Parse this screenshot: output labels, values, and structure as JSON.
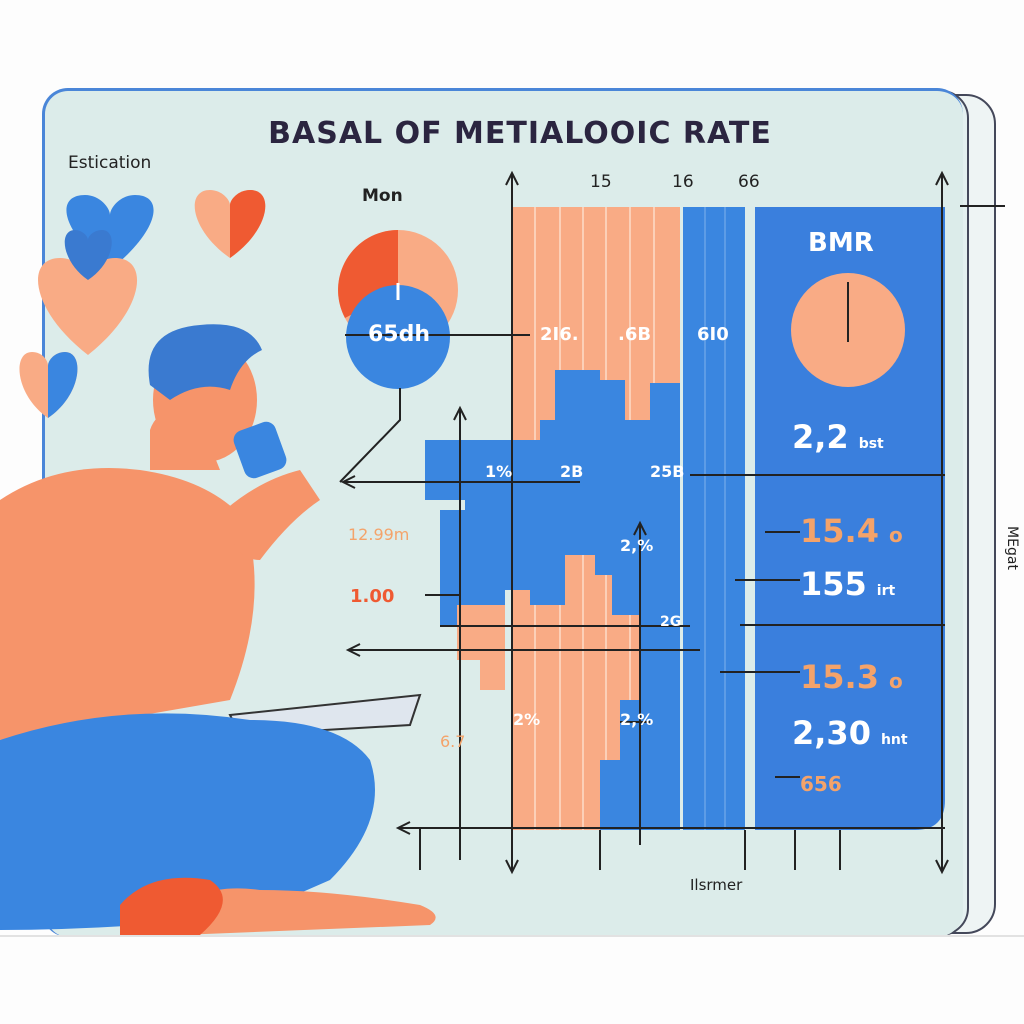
{
  "title": "BASAL OF METIALOOIC RATE",
  "side_label": "Estication",
  "pie_label": "Mon",
  "pie_value": "65dh",
  "top_ticks": [
    "15",
    "16",
    "66"
  ],
  "row1_labels": [
    "2I6.",
    ".6B",
    "6I0"
  ],
  "row2_labels": [
    "1%",
    "2B",
    "25B"
  ],
  "mid_labels": [
    "2,%",
    "2G",
    "2,%",
    "2%"
  ],
  "left_labels": {
    "a": "12.99m",
    "b": "1.00",
    "c": "6.7"
  },
  "bmr_panel": {
    "title": "BMR",
    "main_value": "2,2",
    "main_unit": "bst",
    "values": [
      {
        "value": "15.4",
        "unit": "o"
      },
      {
        "value": "155",
        "unit": "irt"
      },
      {
        "value": "15.3",
        "unit": "o"
      },
      {
        "value": "2,30",
        "unit": "hnt"
      },
      {
        "value": "656",
        "unit": ""
      }
    ]
  },
  "bottom_label": "Ilsrmer",
  "right_label": "MEgat",
  "colors": {
    "blue": "#3a86e0",
    "peach": "#f9ab85",
    "red": "#ef5a32",
    "panel": "#dcecea",
    "orange_text": "#f4a36a"
  },
  "icons": [
    "heart-icon",
    "pie-chart-icon",
    "arrow-icon"
  ]
}
